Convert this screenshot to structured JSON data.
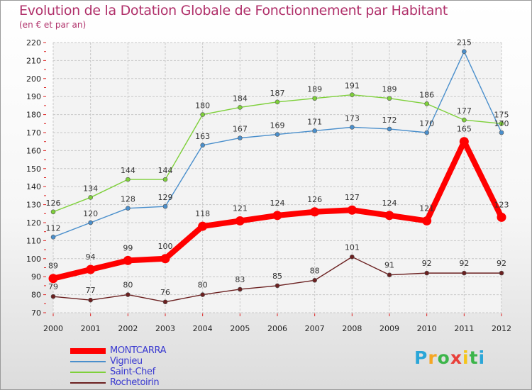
{
  "chart_data": {
    "type": "line",
    "title": "Evolution de la Dotation Globale de Fonctionnement par Habitant",
    "subtitle": "(en € et par an)",
    "categories": [
      "2000",
      "2001",
      "2002",
      "2003",
      "2004",
      "2005",
      "2006",
      "2007",
      "2008",
      "2009",
      "2010",
      "2011",
      "2012"
    ],
    "ylim": [
      70,
      220
    ],
    "yticks": [
      70,
      80,
      90,
      100,
      110,
      120,
      130,
      140,
      150,
      160,
      170,
      180,
      190,
      200,
      210,
      220
    ],
    "grid": true,
    "legend_position": "bottom-left",
    "series": [
      {
        "name": "Rochetoirin",
        "color": "#6b2020",
        "values": [
          79,
          77,
          80,
          76,
          80,
          83,
          85,
          88,
          101,
          91,
          92,
          92,
          92
        ]
      },
      {
        "name": "Vignieu",
        "color": "#4a8fcc",
        "values": [
          112,
          120,
          128,
          129,
          163,
          167,
          169,
          171,
          173,
          172,
          170,
          215,
          170
        ]
      },
      {
        "name": "Saint-Chef",
        "color": "#7ed03a",
        "values": [
          126,
          134,
          144,
          144,
          180,
          184,
          187,
          189,
          191,
          189,
          186,
          177,
          175
        ]
      },
      {
        "name": "MONTCARRA",
        "color": "#ff0000",
        "values": [
          89,
          94,
          99,
          100,
          118,
          121,
          124,
          126,
          127,
          124,
          121,
          165,
          123
        ]
      }
    ]
  },
  "legend": {
    "items": [
      {
        "name": "MONTCARRA",
        "color": "#ff0000"
      },
      {
        "name": "Vignieu",
        "color": "#4a8fcc"
      },
      {
        "name": "Saint-Chef",
        "color": "#7ed03a"
      },
      {
        "name": "Rochetoirin",
        "color": "#6b2020"
      }
    ]
  },
  "logo": {
    "letters": [
      "P",
      "r",
      "o",
      "x",
      "i",
      "t",
      "i"
    ],
    "colors": [
      "#2aa6d8",
      "#f5a623",
      "#3cb54a",
      "#e8403a",
      "#f5c518",
      "#3cb54a",
      "#2aa6d8"
    ]
  }
}
